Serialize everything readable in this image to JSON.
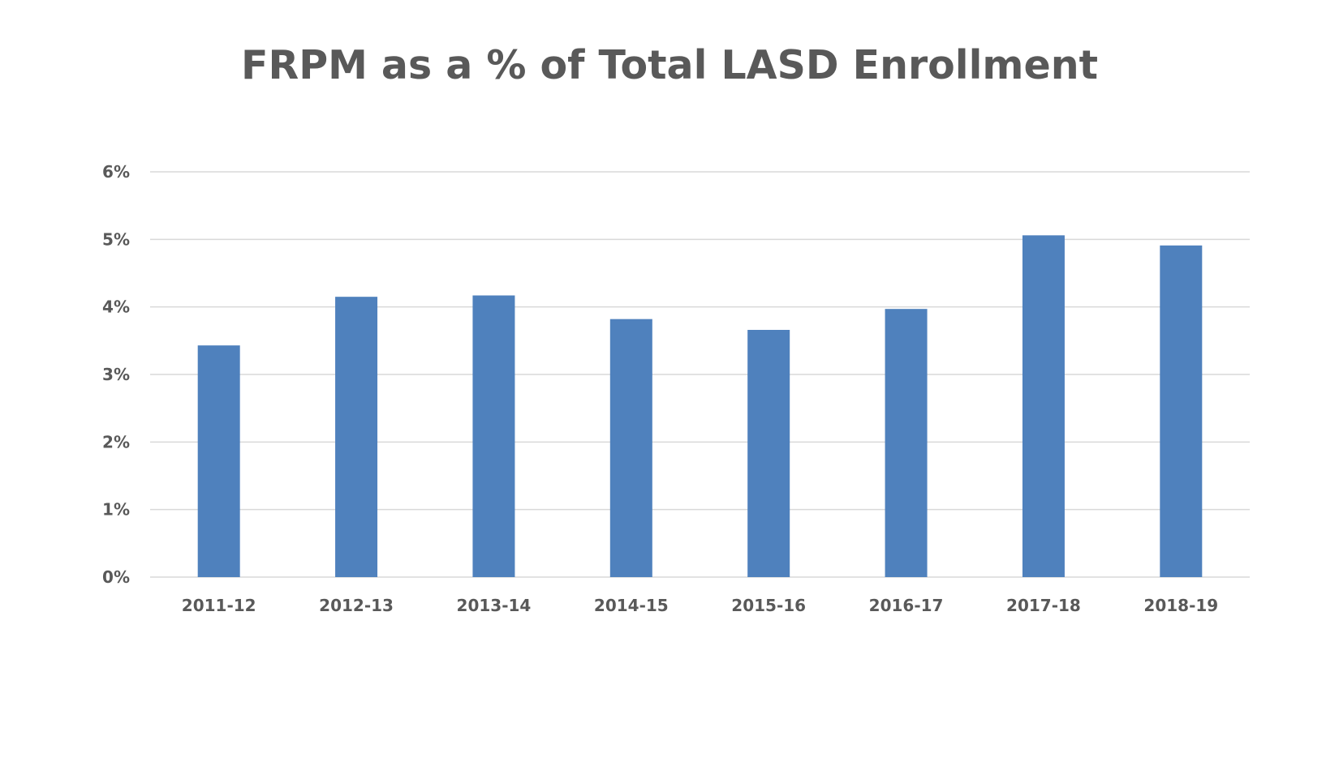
{
  "chart_data": {
    "type": "bar",
    "title": "FRPM as a % of Total LASD Enrollment",
    "xlabel": "",
    "ylabel": "",
    "categories": [
      "2011-12",
      "2012-13",
      "2013-14",
      "2014-15",
      "2015-16",
      "2016-17",
      "2017-18",
      "2018-19"
    ],
    "values": [
      3.43,
      4.15,
      4.17,
      3.82,
      3.66,
      3.97,
      5.06,
      4.91
    ],
    "ylim": [
      0,
      6
    ],
    "yticks": [
      0,
      1,
      2,
      3,
      4,
      5,
      6
    ],
    "ytick_labels": [
      "0%",
      "1%",
      "2%",
      "3%",
      "4%",
      "5%",
      "6%"
    ],
    "grid": true,
    "legend": "none",
    "bar_color": "#4f81bd"
  }
}
